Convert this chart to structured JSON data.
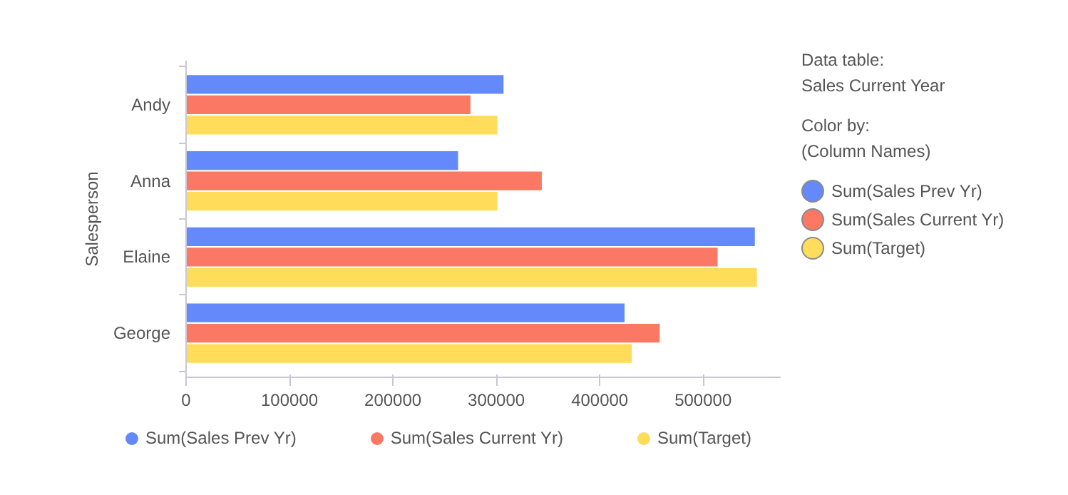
{
  "chart_data": {
    "type": "bar",
    "orientation": "horizontal",
    "ylabel": "Salesperson",
    "categories": [
      "Andy",
      "Anna",
      "Elaine",
      "George"
    ],
    "series": [
      {
        "name": "Sum(Sales Prev Yr)",
        "color": "#6389fa",
        "values": [
          307000,
          263000,
          550000,
          424000
        ]
      },
      {
        "name": "Sum(Sales Current Yr)",
        "color": "#fb7865",
        "values": [
          275000,
          344000,
          514000,
          458000
        ]
      },
      {
        "name": "Sum(Target)",
        "color": "#ffdc5a",
        "values": [
          301000,
          301000,
          552000,
          431000
        ]
      }
    ],
    "xlim": [
      0,
      575000
    ],
    "xticks": [
      0,
      100000,
      200000,
      300000,
      400000,
      500000
    ],
    "grid": false,
    "legend": "bottom",
    "annotations": [
      "Data table:",
      "Sales Current Year",
      "Color by:",
      "(Column Names)"
    ]
  }
}
